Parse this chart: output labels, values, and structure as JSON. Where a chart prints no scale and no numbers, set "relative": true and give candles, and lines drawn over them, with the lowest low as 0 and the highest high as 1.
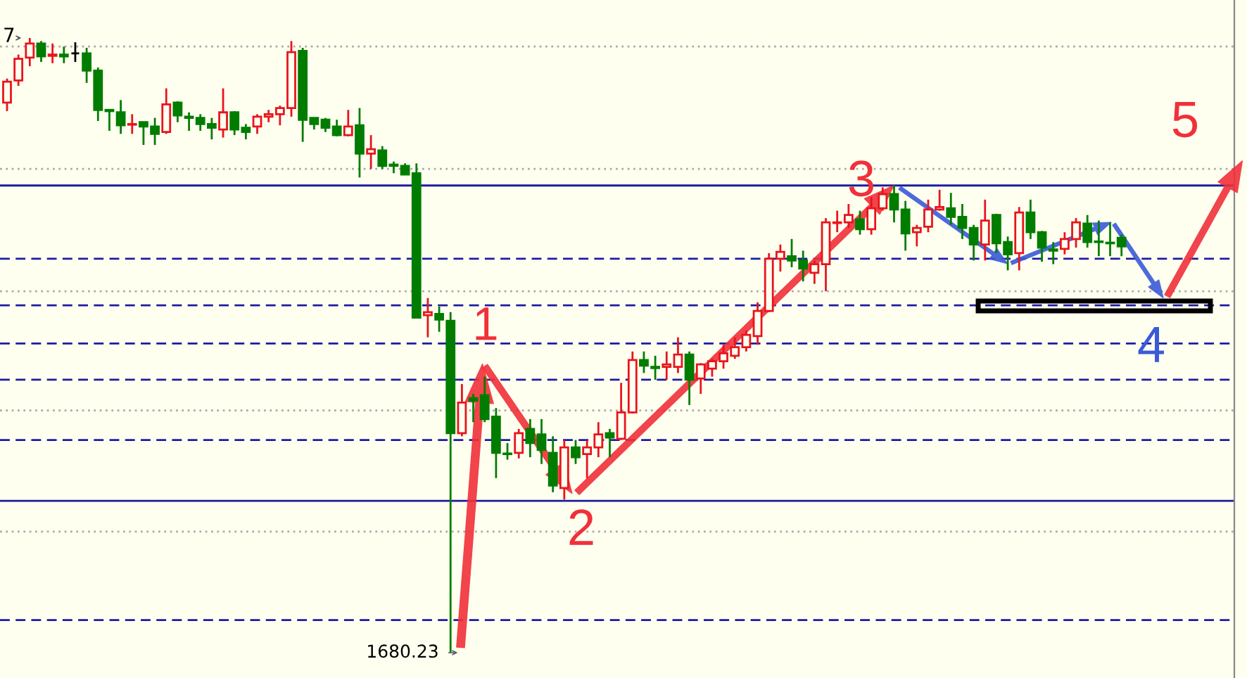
{
  "chart_data": {
    "type": "candlestick",
    "relative": true,
    "categories": [
      null,
      null,
      null,
      null,
      null,
      null,
      null,
      null,
      null,
      null,
      null,
      null,
      null,
      null,
      null,
      null,
      null,
      null,
      null,
      null,
      null,
      null,
      null,
      null,
      null,
      null,
      null,
      null,
      null,
      null,
      null,
      null,
      null,
      null,
      null,
      null,
      null,
      null,
      null,
      null,
      null,
      null,
      null,
      null,
      null,
      null,
      null,
      null,
      null,
      null,
      null,
      null,
      null,
      null,
      null,
      null,
      null,
      null,
      null,
      null,
      null,
      null,
      null,
      null,
      null,
      null,
      null,
      null,
      null,
      null,
      null,
      null,
      null,
      null,
      null,
      null,
      null,
      null,
      null,
      null,
      null,
      null,
      null,
      null,
      null,
      null,
      null,
      null,
      null,
      null,
      null,
      null,
      null,
      null,
      null,
      null,
      null,
      null,
      null
    ],
    "ohlc": [
      [
        0.895,
        0.934,
        0.881,
        0.929
      ],
      [
        0.931,
        0.973,
        0.922,
        0.966
      ],
      [
        0.968,
        1.0,
        0.954,
        0.991
      ],
      [
        0.991,
        0.995,
        0.961,
        0.97
      ],
      [
        0.971,
        0.991,
        0.959,
        0.973
      ],
      [
        0.973,
        0.986,
        0.959,
        0.97
      ],
      [
        0.975,
        0.993,
        0.961,
        0.975
      ],
      [
        0.975,
        0.984,
        0.927,
        0.947
      ],
      [
        0.947,
        0.952,
        0.865,
        0.883
      ],
      [
        0.883,
        0.883,
        0.849,
        0.881
      ],
      [
        0.879,
        0.899,
        0.844,
        0.858
      ],
      [
        0.859,
        0.876,
        0.844,
        0.86
      ],
      [
        0.863,
        0.863,
        0.826,
        0.856
      ],
      [
        0.856,
        0.87,
        0.826,
        0.844
      ],
      [
        0.847,
        0.918,
        0.844,
        0.892
      ],
      [
        0.895,
        0.897,
        0.863,
        0.874
      ],
      [
        0.872,
        0.879,
        0.849,
        0.87
      ],
      [
        0.87,
        0.876,
        0.849,
        0.86
      ],
      [
        0.86,
        0.87,
        0.835,
        0.854
      ],
      [
        0.851,
        0.918,
        0.838,
        0.879
      ],
      [
        0.879,
        0.881,
        0.842,
        0.851
      ],
      [
        0.854,
        0.86,
        0.835,
        0.847
      ],
      [
        0.856,
        0.876,
        0.844,
        0.872
      ],
      [
        0.872,
        0.883,
        0.863,
        0.876
      ],
      [
        0.876,
        0.89,
        0.858,
        0.886
      ],
      [
        0.886,
        0.995,
        0.872,
        0.977
      ],
      [
        0.979,
        0.984,
        0.831,
        0.867
      ],
      [
        0.87,
        0.87,
        0.851,
        0.86
      ],
      [
        0.867,
        0.87,
        0.847,
        0.854
      ],
      [
        0.856,
        0.867,
        0.84,
        0.842
      ],
      [
        0.842,
        0.883,
        0.84,
        0.856
      ],
      [
        0.858,
        0.886,
        0.773,
        0.812
      ],
      [
        0.812,
        0.842,
        0.787,
        0.819
      ],
      [
        0.817,
        0.824,
        0.787,
        0.792
      ],
      [
        0.794,
        0.799,
        0.78,
        0.792
      ],
      [
        0.792,
        0.796,
        0.778,
        0.778
      ],
      [
        0.78,
        0.796,
        0.545,
        0.545
      ],
      [
        0.549,
        0.577,
        0.513,
        0.554
      ],
      [
        0.551,
        0.563,
        0.522,
        0.542
      ],
      [
        0.54,
        0.554,
        0.0,
        0.357
      ],
      [
        0.357,
        0.437,
        0.352,
        0.407
      ],
      [
        0.414,
        0.421,
        0.375,
        0.41
      ],
      [
        0.419,
        0.449,
        0.375,
        0.38
      ],
      [
        0.384,
        0.398,
        0.284,
        0.325
      ],
      [
        0.324,
        0.341,
        0.314,
        0.323
      ],
      [
        0.325,
        0.364,
        0.316,
        0.357
      ],
      [
        0.364,
        0.38,
        0.318,
        0.341
      ],
      [
        0.355,
        0.38,
        0.307,
        0.33
      ],
      [
        0.325,
        0.352,
        0.261,
        0.272
      ],
      [
        0.268,
        0.346,
        0.249,
        0.334
      ],
      [
        0.334,
        0.346,
        0.307,
        0.318
      ],
      [
        0.323,
        0.346,
        0.284,
        0.334
      ],
      [
        0.334,
        0.375,
        0.318,
        0.355
      ],
      [
        0.357,
        0.364,
        0.318,
        0.35
      ],
      [
        0.348,
        0.439,
        0.346,
        0.391
      ],
      [
        0.391,
        0.49,
        0.389,
        0.476
      ],
      [
        0.476,
        0.49,
        0.455,
        0.467
      ],
      [
        0.465,
        0.483,
        0.444,
        0.463
      ],
      [
        0.465,
        0.49,
        0.444,
        0.469
      ],
      [
        0.465,
        0.513,
        0.455,
        0.485
      ],
      [
        0.485,
        0.49,
        0.403,
        0.444
      ],
      [
        0.446,
        0.471,
        0.421,
        0.469
      ],
      [
        0.462,
        0.478,
        0.449,
        0.474
      ],
      [
        0.474,
        0.501,
        0.462,
        0.487
      ],
      [
        0.483,
        0.513,
        0.478,
        0.497
      ],
      [
        0.497,
        0.524,
        0.49,
        0.517
      ],
      [
        0.515,
        0.57,
        0.501,
        0.556
      ],
      [
        0.556,
        0.65,
        0.554,
        0.641
      ],
      [
        0.641,
        0.664,
        0.62,
        0.652
      ],
      [
        0.645,
        0.673,
        0.627,
        0.638
      ],
      [
        0.638,
        0.654,
        0.604,
        0.625
      ],
      [
        0.618,
        0.638,
        0.6,
        0.632
      ],
      [
        0.632,
        0.707,
        0.588,
        0.7
      ],
      [
        0.699,
        0.719,
        0.684,
        0.7
      ],
      [
        0.7,
        0.73,
        0.691,
        0.712
      ],
      [
        0.705,
        0.719,
        0.68,
        0.689
      ],
      [
        0.689,
        0.741,
        0.68,
        0.723
      ],
      [
        0.723,
        0.757,
        0.719,
        0.746
      ],
      [
        0.746,
        0.76,
        0.7,
        0.721
      ],
      [
        0.721,
        0.735,
        0.654,
        0.682
      ],
      [
        0.684,
        0.696,
        0.661,
        0.691
      ],
      [
        0.693,
        0.737,
        0.684,
        0.721
      ],
      [
        0.721,
        0.753,
        0.719,
        0.725
      ],
      [
        0.723,
        0.748,
        0.696,
        0.709
      ],
      [
        0.709,
        0.73,
        0.673,
        0.691
      ],
      [
        0.691,
        0.696,
        0.638,
        0.664
      ],
      [
        0.664,
        0.737,
        0.638,
        0.703
      ],
      [
        0.712,
        0.714,
        0.65,
        0.666
      ],
      [
        0.668,
        0.677,
        0.622,
        0.648
      ],
      [
        0.65,
        0.725,
        0.622,
        0.716
      ],
      [
        0.716,
        0.737,
        0.673,
        0.684
      ],
      [
        0.684,
        0.686,
        0.636,
        0.659
      ],
      [
        0.656,
        0.668,
        0.632,
        0.654
      ],
      [
        0.657,
        0.684,
        0.648,
        0.673
      ],
      [
        0.673,
        0.707,
        0.659,
        0.7
      ],
      [
        0.698,
        0.712,
        0.659,
        0.668
      ],
      [
        0.669,
        0.703,
        0.645,
        0.668
      ],
      [
        0.667,
        0.7,
        0.645,
        0.666
      ],
      [
        0.675,
        0.68,
        0.645,
        0.661
      ]
    ],
    "colors": [
      "#e8141c",
      "#e8141c",
      "#e8141c",
      "#007d00",
      "#e8141c",
      "#007d00",
      "#000000",
      "#007d00",
      "#007d00",
      "#007d00",
      "#007d00",
      "#e8141c",
      "#007d00",
      "#007d00",
      "#e8141c",
      "#007d00",
      "#007d00",
      "#007d00",
      "#007d00",
      "#e8141c",
      "#007d00",
      "#007d00",
      "#e8141c",
      "#e8141c",
      "#e8141c",
      "#e8141c",
      "#007d00",
      "#007d00",
      "#007d00",
      "#007d00",
      "#e8141c",
      "#007d00",
      "#e8141c",
      "#007d00",
      "#007d00",
      "#007d00",
      "#007d00",
      "#e8141c",
      "#007d00",
      "#007d00",
      "#e8141c",
      "#007d00",
      "#007d00",
      "#007d00",
      "#007d00",
      "#e8141c",
      "#007d00",
      "#007d00",
      "#007d00",
      "#e8141c",
      "#007d00",
      "#e8141c",
      "#e8141c",
      "#007d00",
      "#e8141c",
      "#e8141c",
      "#007d00",
      "#007d00",
      "#e8141c",
      "#e8141c",
      "#007d00",
      "#e8141c",
      "#e8141c",
      "#e8141c",
      "#e8141c",
      "#e8141c",
      "#e8141c",
      "#e8141c",
      "#e8141c",
      "#007d00",
      "#007d00",
      "#e8141c",
      "#e8141c",
      "#e8141c",
      "#e8141c",
      "#007d00",
      "#e8141c",
      "#e8141c",
      "#007d00",
      "#007d00",
      "#e8141c",
      "#e8141c",
      "#e8141c",
      "#007d00",
      "#007d00",
      "#007d00",
      "#e8141c",
      "#007d00",
      "#007d00",
      "#e8141c",
      "#007d00",
      "#007d00",
      "#007d00",
      "#e8141c",
      "#e8141c",
      "#007d00",
      "#007d00",
      "#007d00",
      "#007d00"
    ],
    "ref_lines": [
      {
        "axis": "y",
        "value": 0.76,
        "color": "#1c1ca0",
        "line_style": "solid"
      },
      {
        "axis": "y",
        "value": 0.247,
        "color": "#1c1ca0",
        "line_style": "solid"
      },
      {
        "axis": "y",
        "value": 0.641,
        "color": "#1c1ca0",
        "line_style": "dashed"
      },
      {
        "axis": "y",
        "value": 0.565,
        "color": "#1c1ca0",
        "line_style": "dashed"
      },
      {
        "axis": "y",
        "value": 0.503,
        "color": "#1c1ca0",
        "line_style": "dashed"
      },
      {
        "axis": "y",
        "value": 0.444,
        "color": "#1c1ca0",
        "line_style": "dashed"
      },
      {
        "axis": "y",
        "value": 0.346,
        "color": "#1c1ca0",
        "line_style": "dashed"
      },
      {
        "axis": "y",
        "value": 0.053,
        "color": "#1c1ca0",
        "line_style": "dashed"
      },
      {
        "axis": "y",
        "value": 0.986,
        "color": "#aaaaaa",
        "line_style": "dotted"
      },
      {
        "axis": "y",
        "value": 0.787,
        "color": "#aaaaaa",
        "line_style": "dotted"
      },
      {
        "axis": "y",
        "value": 0.588,
        "color": "#aaaaaa",
        "line_style": "dotted"
      },
      {
        "axis": "y",
        "value": 0.394,
        "color": "#aaaaaa",
        "line_style": "dotted"
      },
      {
        "axis": "y",
        "value": 0.197,
        "color": "#aaaaaa",
        "line_style": "dotted"
      }
    ],
    "annotations": [
      "7",
      "1680.23",
      "1",
      "2",
      "3",
      "4",
      "5"
    ]
  }
}
